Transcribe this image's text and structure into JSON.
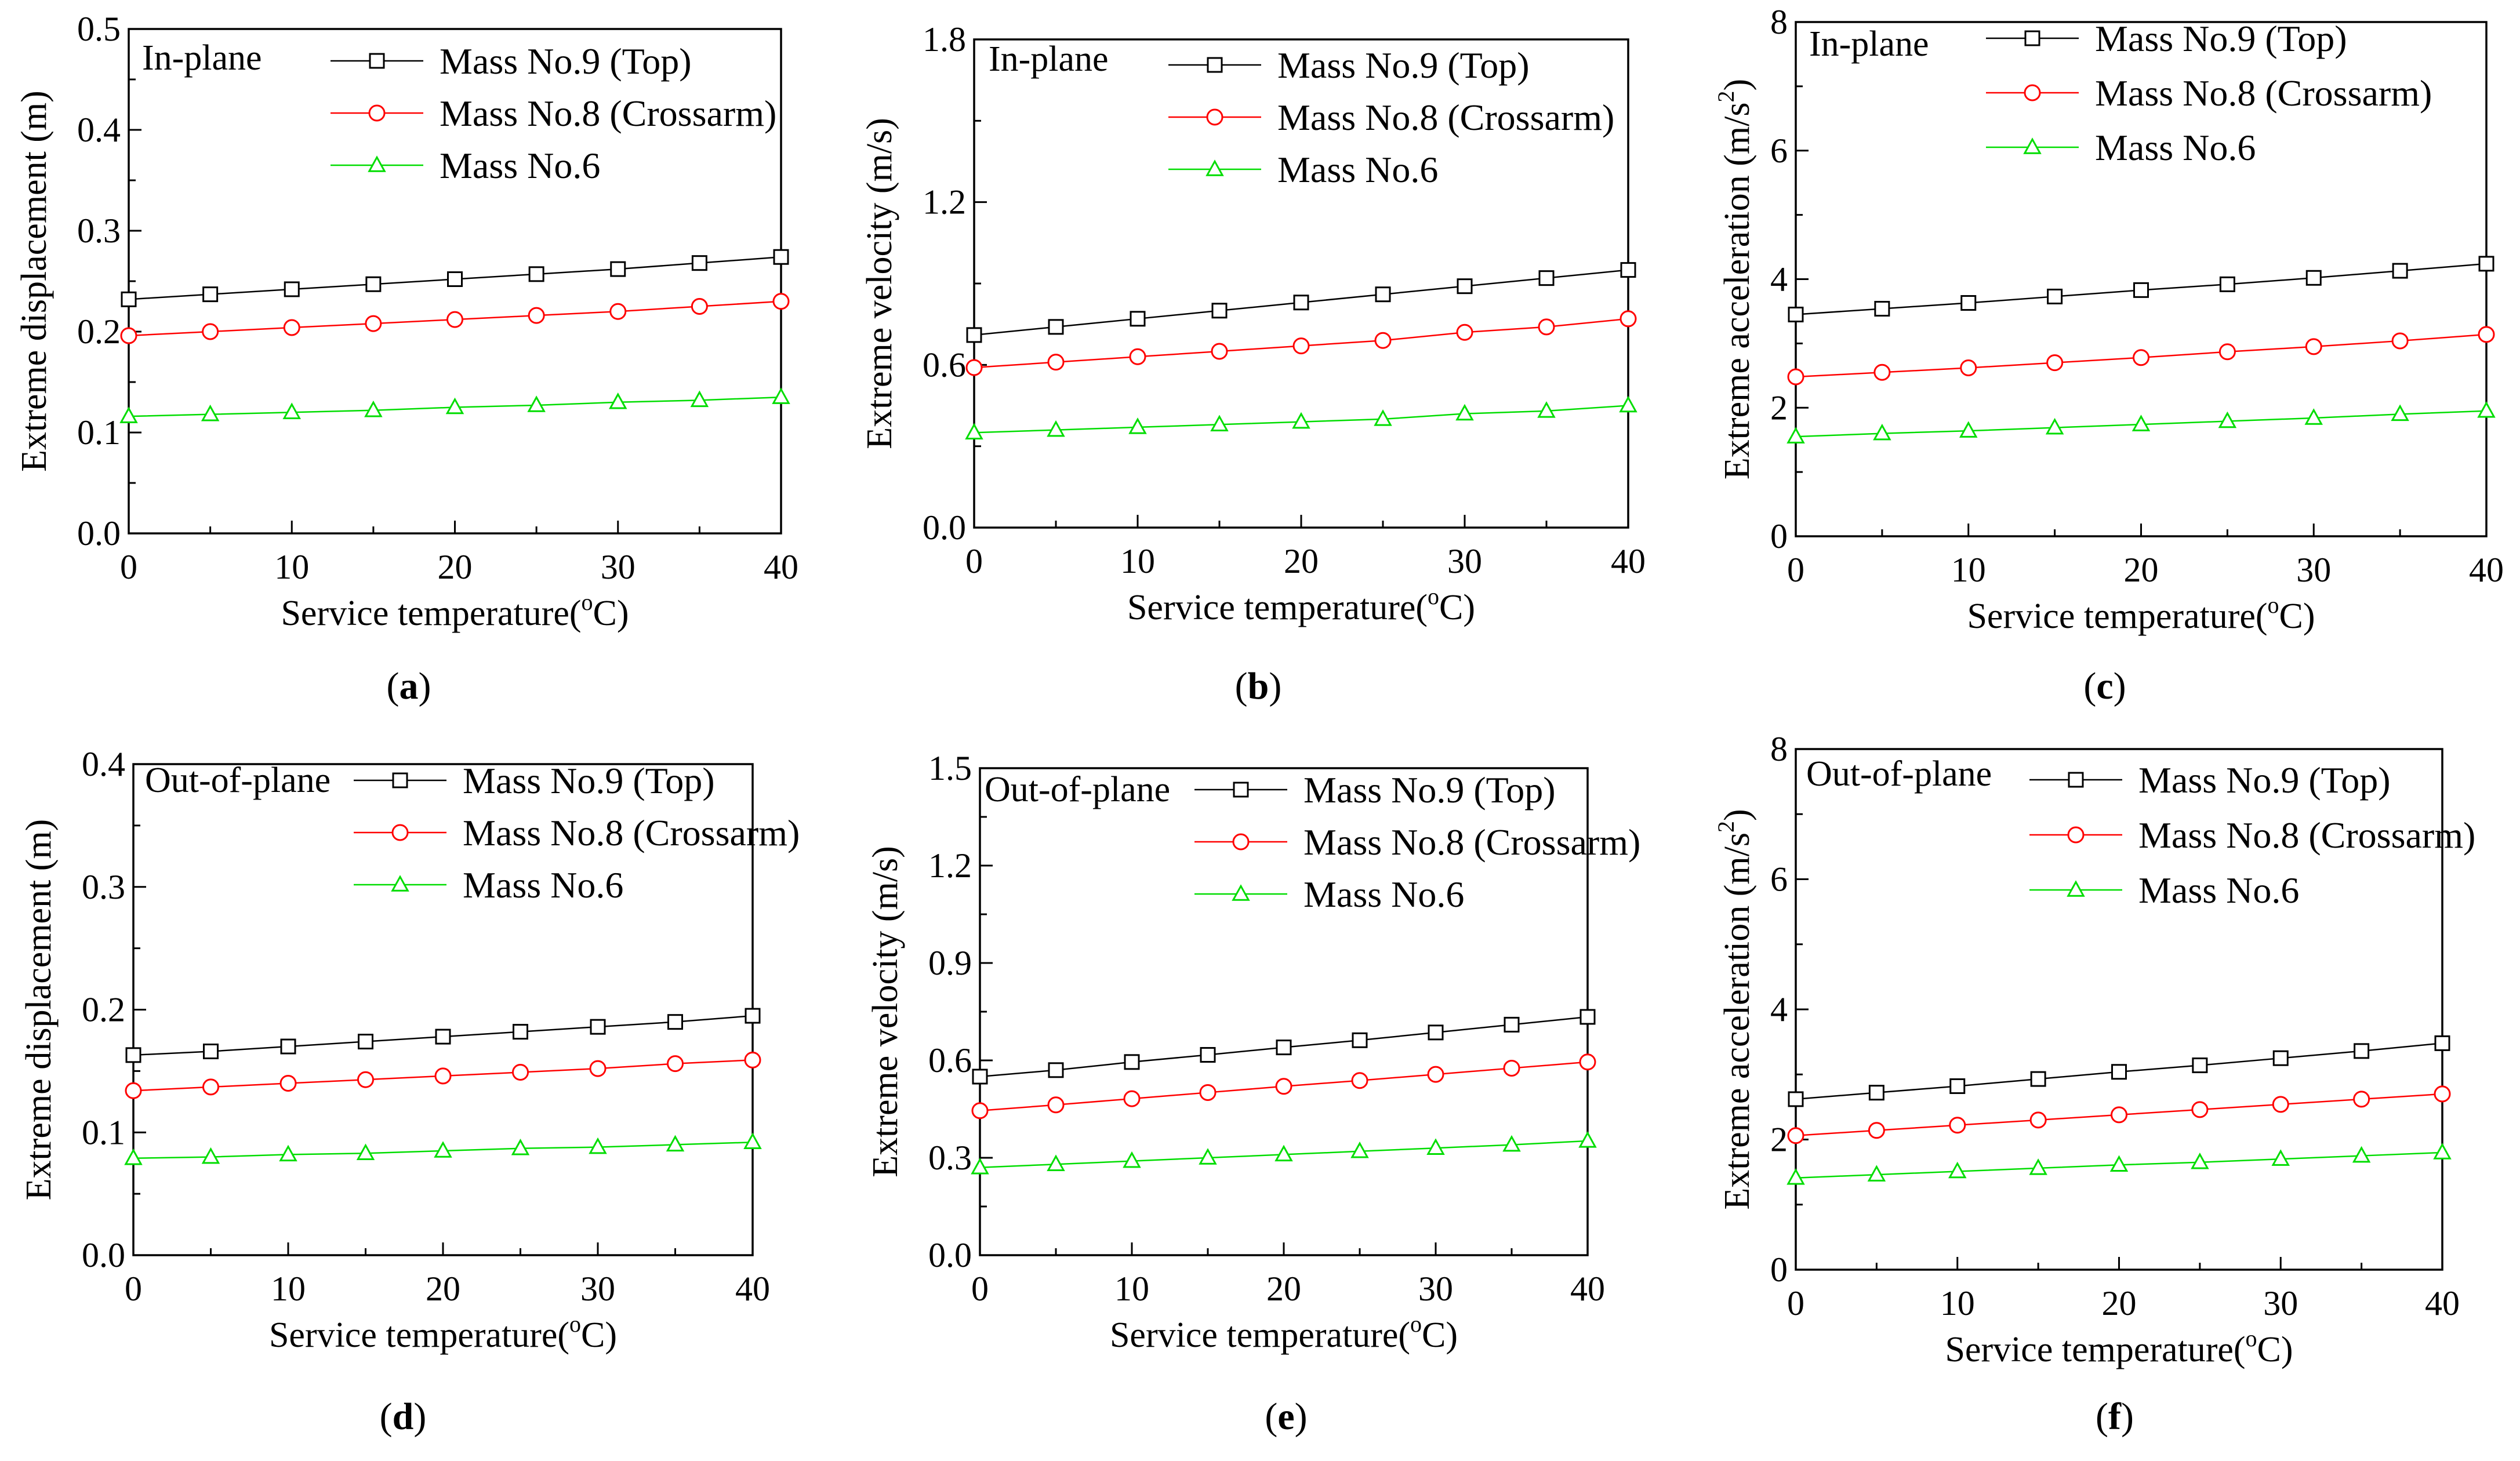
{
  "figure": {
    "series_colors": [
      "#000000",
      "#ff0000",
      "#00dd00"
    ],
    "marker_types": [
      "square",
      "circle",
      "triangle"
    ]
  },
  "chart_data": [
    {
      "type": "line",
      "caption": "a",
      "annotation": "In-plane",
      "xlabel": "Service temperature(",
      "xlabel_sup": "o",
      "xlabel_end": "C)",
      "ylabel": "Extreme displacement (m)",
      "ylabel_sup": "",
      "ylabel_end": "",
      "xlim": [
        0,
        40
      ],
      "ylim": [
        0,
        0.5
      ],
      "xticks": [
        0,
        10,
        20,
        30,
        40
      ],
      "xtick_labels": [
        "0",
        "10",
        "20",
        "30",
        "40"
      ],
      "yticks": [
        0,
        0.1,
        0.2,
        0.3,
        0.4,
        0.5
      ],
      "ytick_labels": [
        "0.0",
        "0.1",
        "0.2",
        "0.3",
        "0.4",
        "0.5"
      ],
      "x": [
        0,
        5,
        10,
        15,
        20,
        25,
        30,
        35,
        40
      ],
      "series": [
        {
          "name": "Mass No.9 (Top)",
          "values": [
            0.232,
            0.237,
            0.242,
            0.247,
            0.252,
            0.257,
            0.262,
            0.268,
            0.274
          ]
        },
        {
          "name": "Mass No.8 (Crossarm)",
          "values": [
            0.196,
            0.2,
            0.204,
            0.208,
            0.212,
            0.216,
            0.22,
            0.225,
            0.23
          ]
        },
        {
          "name": "Mass No.6",
          "values": [
            0.116,
            0.118,
            0.12,
            0.122,
            0.125,
            0.127,
            0.13,
            0.132,
            0.135
          ]
        }
      ]
    },
    {
      "type": "line",
      "caption": "b",
      "annotation": "In-plane",
      "xlabel": "Service temperature(",
      "xlabel_sup": "o",
      "xlabel_end": "C)",
      "ylabel": "Extreme velocity (m/s)",
      "ylabel_sup": "",
      "ylabel_end": "",
      "xlim": [
        0,
        40
      ],
      "ylim": [
        0,
        1.8
      ],
      "xticks": [
        0,
        10,
        20,
        30,
        40
      ],
      "xtick_labels": [
        "0",
        "10",
        "20",
        "30",
        "40"
      ],
      "yticks": [
        0,
        0.6,
        1.2,
        1.8
      ],
      "ytick_labels": [
        "0.0",
        "0.6",
        "1.2",
        "1.8"
      ],
      "x": [
        0,
        5,
        10,
        15,
        20,
        25,
        30,
        35,
        40
      ],
      "series": [
        {
          "name": "Mass No.9 (Top)",
          "values": [
            0.71,
            0.74,
            0.77,
            0.8,
            0.83,
            0.86,
            0.89,
            0.92,
            0.95
          ]
        },
        {
          "name": "Mass No.8 (Crossarm)",
          "values": [
            0.59,
            0.61,
            0.63,
            0.65,
            0.67,
            0.69,
            0.72,
            0.74,
            0.77
          ]
        },
        {
          "name": "Mass No.6",
          "values": [
            0.35,
            0.36,
            0.37,
            0.38,
            0.39,
            0.4,
            0.42,
            0.43,
            0.45
          ]
        }
      ]
    },
    {
      "type": "line",
      "caption": "c",
      "annotation": "In-plane",
      "xlabel": "Service temperature(",
      "xlabel_sup": "o",
      "xlabel_end": "C)",
      "ylabel": "Extreme acceleration (m/s",
      "ylabel_sup": "2",
      "ylabel_end": ")",
      "xlim": [
        0,
        40
      ],
      "ylim": [
        0,
        8
      ],
      "xticks": [
        0,
        10,
        20,
        30,
        40
      ],
      "xtick_labels": [
        "0",
        "10",
        "20",
        "30",
        "40"
      ],
      "yticks": [
        0,
        2,
        4,
        6,
        8
      ],
      "ytick_labels": [
        "0",
        "2",
        "4",
        "6",
        "8"
      ],
      "x": [
        0,
        5,
        10,
        15,
        20,
        25,
        30,
        35,
        40
      ],
      "series": [
        {
          "name": "Mass No.9 (Top)",
          "values": [
            3.45,
            3.54,
            3.63,
            3.73,
            3.83,
            3.92,
            4.02,
            4.13,
            4.24
          ]
        },
        {
          "name": "Mass No.8 (Crossarm)",
          "values": [
            2.48,
            2.55,
            2.62,
            2.7,
            2.78,
            2.87,
            2.95,
            3.04,
            3.14
          ]
        },
        {
          "name": "Mass No.6",
          "values": [
            1.55,
            1.6,
            1.64,
            1.69,
            1.74,
            1.79,
            1.84,
            1.9,
            1.95
          ]
        }
      ]
    },
    {
      "type": "line",
      "caption": "d",
      "annotation": "Out-of-plane",
      "xlabel": "Service temperature(",
      "xlabel_sup": "o",
      "xlabel_end": "C)",
      "ylabel": "Extreme displacement (m)",
      "ylabel_sup": "",
      "ylabel_end": "",
      "xlim": [
        0,
        40
      ],
      "ylim": [
        0,
        0.4
      ],
      "xticks": [
        0,
        10,
        20,
        30,
        40
      ],
      "xtick_labels": [
        "0",
        "10",
        "20",
        "30",
        "40"
      ],
      "yticks": [
        0,
        0.1,
        0.2,
        0.3,
        0.4
      ],
      "ytick_labels": [
        "0.0",
        "0.1",
        "0.2",
        "0.3",
        "0.4"
      ],
      "x": [
        0,
        5,
        10,
        15,
        20,
        25,
        30,
        35,
        40
      ],
      "series": [
        {
          "name": "Mass No.9 (Top)",
          "values": [
            0.163,
            0.166,
            0.17,
            0.174,
            0.178,
            0.182,
            0.186,
            0.19,
            0.195
          ]
        },
        {
          "name": "Mass No.8 (Crossarm)",
          "values": [
            0.134,
            0.137,
            0.14,
            0.143,
            0.146,
            0.149,
            0.152,
            0.156,
            0.159
          ]
        },
        {
          "name": "Mass No.6",
          "values": [
            0.079,
            0.08,
            0.082,
            0.083,
            0.085,
            0.087,
            0.088,
            0.09,
            0.092
          ]
        }
      ]
    },
    {
      "type": "line",
      "caption": "e",
      "annotation": "Out-of-plane",
      "xlabel": "Service temperature(",
      "xlabel_sup": "o",
      "xlabel_end": "C)",
      "ylabel": "Extreme velocity (m/s)",
      "ylabel_sup": "",
      "ylabel_end": "",
      "xlim": [
        0,
        40
      ],
      "ylim": [
        0,
        1.5
      ],
      "xticks": [
        0,
        10,
        20,
        30,
        40
      ],
      "xtick_labels": [
        "0",
        "10",
        "20",
        "30",
        "40"
      ],
      "yticks": [
        0,
        0.3,
        0.6,
        0.9,
        1.2,
        1.5
      ],
      "ytick_labels": [
        "0.0",
        "0.3",
        "0.6",
        "0.9",
        "1.2",
        "1.5"
      ],
      "x": [
        0,
        5,
        10,
        15,
        20,
        25,
        30,
        35,
        40
      ],
      "series": [
        {
          "name": "Mass No.9 (Top)",
          "values": [
            0.55,
            0.57,
            0.595,
            0.617,
            0.64,
            0.662,
            0.686,
            0.71,
            0.734
          ]
        },
        {
          "name": "Mass No.8 (Crossarm)",
          "values": [
            0.445,
            0.463,
            0.482,
            0.501,
            0.52,
            0.538,
            0.557,
            0.576,
            0.595
          ]
        },
        {
          "name": "Mass No.6",
          "values": [
            0.27,
            0.28,
            0.29,
            0.3,
            0.31,
            0.32,
            0.33,
            0.34,
            0.352
          ]
        }
      ]
    },
    {
      "type": "line",
      "caption": "f",
      "annotation": "Out-of-plane",
      "xlabel": "Service temperature(",
      "xlabel_sup": "o",
      "xlabel_end": "C)",
      "ylabel": "Extreme acceleration (m/s",
      "ylabel_sup": "2",
      "ylabel_end": ")",
      "xlim": [
        0,
        40
      ],
      "ylim": [
        0,
        8
      ],
      "xticks": [
        0,
        10,
        20,
        30,
        40
      ],
      "xtick_labels": [
        "0",
        "10",
        "20",
        "30",
        "40"
      ],
      "yticks": [
        0,
        2,
        4,
        6,
        8
      ],
      "ytick_labels": [
        "0",
        "2",
        "4",
        "6",
        "8"
      ],
      "x": [
        0,
        5,
        10,
        15,
        20,
        25,
        30,
        35,
        40
      ],
      "series": [
        {
          "name": "Mass No.9 (Top)",
          "values": [
            2.62,
            2.72,
            2.82,
            2.93,
            3.04,
            3.14,
            3.25,
            3.36,
            3.48
          ]
        },
        {
          "name": "Mass No.8 (Crossarm)",
          "values": [
            2.06,
            2.14,
            2.22,
            2.3,
            2.38,
            2.46,
            2.54,
            2.62,
            2.7
          ]
        },
        {
          "name": "Mass No.6",
          "values": [
            1.41,
            1.46,
            1.51,
            1.56,
            1.61,
            1.65,
            1.7,
            1.75,
            1.8
          ]
        }
      ]
    }
  ]
}
